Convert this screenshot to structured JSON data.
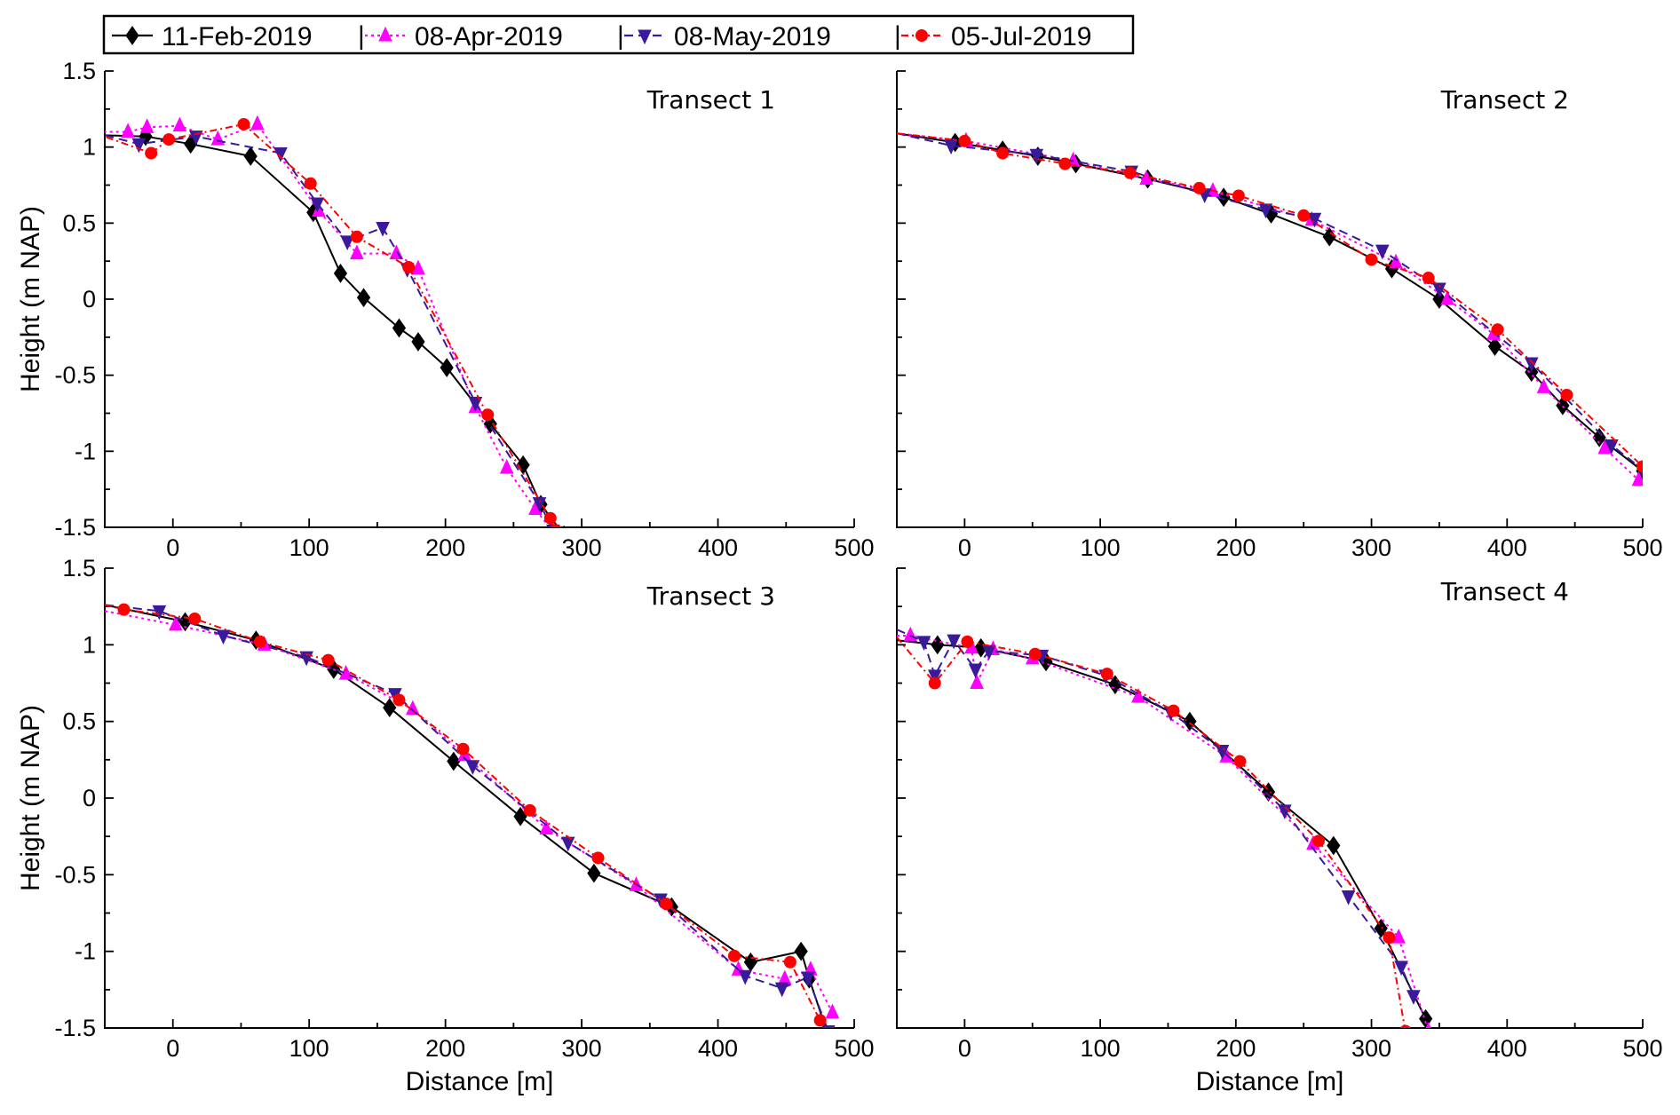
{
  "legend": [
    {
      "label": "11-Feb-2019",
      "separator": ""
    },
    {
      "label": "08-Apr-2019",
      "separator": "|"
    },
    {
      "label": "08-May-2019",
      "separator": "|"
    },
    {
      "label": "05-Jul-2019",
      "separator": "|"
    }
  ],
  "styles": {
    "11-Feb-2019": {
      "color": "#000000",
      "dash": "",
      "marker": "diamond"
    },
    "08-Apr-2019": {
      "color": "#ff00ff",
      "dash": "3,4",
      "marker": "triangle-up"
    },
    "08-May-2019": {
      "color": "#3a1a9a",
      "dash": "10,6",
      "marker": "triangle-down"
    },
    "05-Jul-2019": {
      "color": "#ff0000",
      "dash": "8,4,2,4",
      "marker": "circle"
    }
  },
  "chart_data": [
    {
      "type": "line",
      "title": "Transect 1",
      "xlabel": "",
      "ylabel": "Height (m NAP)",
      "xlim": [
        -50,
        500
      ],
      "ylim": [
        -1.5,
        1.5
      ],
      "xticks": [
        "0",
        "100",
        "200",
        "300",
        "400",
        "500"
      ],
      "yticks": [
        "1.5",
        "1",
        "0.5",
        "0",
        "-0.5",
        "-1",
        "-1.5"
      ],
      "series": [
        {
          "name": "11-Feb-2019",
          "x": [
            -60,
            -20,
            13,
            57,
            103,
            123,
            140,
            166,
            180,
            201,
            233,
            257,
            270,
            287
          ],
          "y": [
            1.08,
            1.07,
            1.02,
            0.94,
            0.57,
            0.17,
            0.01,
            -0.19,
            -0.28,
            -0.45,
            -0.82,
            -1.09,
            -1.35,
            -1.55
          ]
        },
        {
          "name": "08-Apr-2019",
          "x": [
            -60,
            -33,
            -19,
            5,
            33,
            62,
            107,
            135,
            164,
            180,
            222,
            245,
            266,
            278
          ],
          "y": [
            1.1,
            1.1,
            1.13,
            1.14,
            1.05,
            1.15,
            0.58,
            0.3,
            0.3,
            0.2,
            -0.71,
            -1.11,
            -1.38,
            -1.52
          ]
        },
        {
          "name": "08-May-2019",
          "x": [
            -60,
            -25,
            17,
            79,
            106,
            128,
            154,
            172,
            222,
            269,
            279
          ],
          "y": [
            1.1,
            1.02,
            1.07,
            0.96,
            0.63,
            0.38,
            0.47,
            0.2,
            -0.68,
            -1.34,
            -1.52
          ]
        },
        {
          "name": "05-Jul-2019",
          "x": [
            -60,
            -16,
            -3,
            52,
            101,
            135,
            173,
            231,
            277,
            281
          ],
          "y": [
            1.1,
            0.96,
            1.05,
            1.15,
            0.76,
            0.41,
            0.21,
            -0.76,
            -1.44,
            -1.52
          ]
        }
      ]
    },
    {
      "type": "line",
      "title": "Transect 2",
      "xlabel": "",
      "ylabel": "",
      "xlim": [
        -50,
        500
      ],
      "ylim": [
        -1.5,
        1.5
      ],
      "xticks": [
        "0",
        "100",
        "200",
        "300",
        "400",
        "500"
      ],
      "yticks": [],
      "series": [
        {
          "name": "11-Feb-2019",
          "x": [
            -50,
            -7,
            28,
            54,
            82,
            135,
            191,
            226,
            269,
            315,
            350,
            391,
            418,
            441,
            468,
            500
          ],
          "y": [
            1.09,
            1.03,
            0.98,
            0.94,
            0.89,
            0.79,
            0.67,
            0.56,
            0.41,
            0.2,
            0.0,
            -0.31,
            -0.48,
            -0.7,
            -0.91,
            -1.13
          ]
        },
        {
          "name": "08-Apr-2019",
          "x": [
            -50,
            1,
            80,
            134,
            183,
            256,
            318,
            356,
            390,
            427,
            472,
            497
          ],
          "y": [
            1.09,
            1.04,
            0.91,
            0.79,
            0.71,
            0.52,
            0.24,
            0.0,
            -0.23,
            -0.58,
            -0.98,
            -1.19
          ]
        },
        {
          "name": "08-May-2019",
          "x": [
            -50,
            -10,
            53,
            123,
            177,
            222,
            258,
            308,
            350,
            418,
            477,
            500
          ],
          "y": [
            1.09,
            1.01,
            0.95,
            0.84,
            0.69,
            0.59,
            0.53,
            0.32,
            0.07,
            -0.42,
            -0.96,
            -1.12
          ]
        },
        {
          "name": "05-Jul-2019",
          "x": [
            -50,
            0,
            28,
            74,
            122,
            173,
            202,
            250,
            300,
            342,
            393,
            444,
            500
          ],
          "y": [
            1.09,
            1.04,
            0.96,
            0.89,
            0.83,
            0.73,
            0.68,
            0.55,
            0.26,
            0.14,
            -0.2,
            -0.63,
            -1.1
          ]
        }
      ]
    },
    {
      "type": "line",
      "title": "Transect 3",
      "xlabel": "Distance [m]",
      "ylabel": "Height (m NAP)",
      "xlim": [
        -50,
        500
      ],
      "ylim": [
        -1.5,
        1.5
      ],
      "xticks": [
        "0",
        "100",
        "200",
        "300",
        "400",
        "500"
      ],
      "yticks": [
        "1.5",
        "1",
        "0.5",
        "0",
        "-0.5",
        "-1",
        "-1.5"
      ],
      "series": [
        {
          "name": "11-Feb-2019",
          "x": [
            -50,
            9,
            61,
            118,
            159,
            206,
            255,
            309,
            366,
            424,
            461,
            467,
            481
          ],
          "y": [
            1.26,
            1.15,
            1.03,
            0.84,
            0.59,
            0.24,
            -0.12,
            -0.49,
            -0.71,
            -1.07,
            -1.0,
            -1.18,
            -1.55
          ]
        },
        {
          "name": "08-Apr-2019",
          "x": [
            -50,
            2,
            67,
            127,
            176,
            214,
            274,
            340,
            415,
            449,
            468,
            484
          ],
          "y": [
            1.22,
            1.13,
            1.0,
            0.81,
            0.58,
            0.28,
            -0.2,
            -0.57,
            -1.12,
            -1.18,
            -1.12,
            -1.4
          ]
        },
        {
          "name": "08-May-2019",
          "x": [
            -50,
            -10,
            37,
            98,
            163,
            220,
            290,
            358,
            420,
            447,
            466,
            481
          ],
          "y": [
            1.26,
            1.22,
            1.06,
            0.92,
            0.68,
            0.21,
            -0.29,
            -0.66,
            -1.16,
            -1.24,
            -1.17,
            -1.52
          ]
        },
        {
          "name": "05-Jul-2019",
          "x": [
            -50,
            -36,
            16,
            64,
            114,
            166,
            213,
            262,
            312,
            362,
            412,
            453,
            475
          ],
          "y": [
            1.26,
            1.23,
            1.17,
            1.02,
            0.9,
            0.64,
            0.32,
            -0.08,
            -0.39,
            -0.69,
            -1.03,
            -1.07,
            -1.45
          ]
        }
      ]
    },
    {
      "type": "line",
      "title": "Transect 4",
      "xlabel": "Distance [m]",
      "ylabel": "",
      "xlim": [
        -50,
        500
      ],
      "ylim": [
        -1.5,
        1.5
      ],
      "xticks": [
        "0",
        "100",
        "200",
        "300",
        "400",
        "500"
      ],
      "yticks": [],
      "series": [
        {
          "name": "11-Feb-2019",
          "x": [
            -50,
            -20,
            12,
            60,
            111,
            166,
            224,
            272,
            307,
            340
          ],
          "y": [
            1.03,
            1.0,
            0.98,
            0.89,
            0.74,
            0.5,
            0.04,
            -0.31,
            -0.85,
            -1.44
          ]
        },
        {
          "name": "08-Apr-2019",
          "x": [
            -50,
            -40,
            5,
            9,
            21,
            50,
            128,
            193,
            257,
            320,
            342
          ],
          "y": [
            1.06,
            1.06,
            0.98,
            0.75,
            0.97,
            0.91,
            0.66,
            0.27,
            -0.3,
            -0.91,
            -1.52
          ]
        },
        {
          "name": "08-May-2019",
          "x": [
            -50,
            -30,
            -22,
            -8,
            8,
            18,
            57,
            104,
            152,
            190,
            236,
            283,
            322,
            331
          ],
          "y": [
            1.1,
            1.02,
            0.8,
            1.03,
            0.84,
            0.96,
            0.93,
            0.8,
            0.56,
            0.31,
            -0.08,
            -0.64,
            -1.1,
            -1.29
          ]
        },
        {
          "name": "05-Jul-2019",
          "x": [
            -50,
            -22,
            2,
            52,
            105,
            154,
            203,
            261,
            313,
            325
          ],
          "y": [
            1.05,
            0.75,
            1.02,
            0.94,
            0.81,
            0.57,
            0.24,
            -0.28,
            -0.91,
            -1.52
          ]
        }
      ]
    }
  ]
}
